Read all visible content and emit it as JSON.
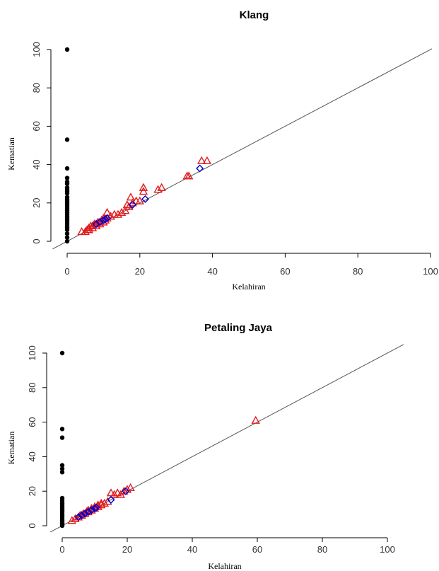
{
  "chart_data": [
    {
      "type": "scatter",
      "title": "Klang",
      "xlabel": "Kelahiran",
      "ylabel": "Kematian",
      "xlim": [
        -4,
        100
      ],
      "ylim": [
        -4,
        102
      ],
      "xticks": [
        "0",
        "20",
        "40",
        "60",
        "80",
        "100"
      ],
      "yticks": [
        "0",
        "20",
        "40",
        "60",
        "80",
        "100"
      ],
      "reference_line": {
        "slope": 1,
        "intercept": 0,
        "color": "#555555"
      },
      "grid": false,
      "series": [
        {
          "color": "#000000",
          "marker": "dot",
          "x": [
            0,
            0,
            0,
            0,
            0,
            0,
            0,
            0,
            0,
            0,
            0,
            0,
            0,
            0,
            0,
            0,
            0,
            0,
            0,
            0,
            0,
            0,
            0,
            0,
            0,
            0,
            0,
            0,
            0,
            0,
            0
          ],
          "y": [
            100,
            53,
            38,
            33,
            31,
            30,
            28,
            27,
            26,
            25,
            23,
            22,
            21,
            20,
            19,
            18,
            17,
            16,
            15,
            14,
            13,
            12,
            11,
            10,
            9,
            8,
            7,
            6,
            4,
            2,
            0
          ]
        },
        {
          "color": "#e41a1c",
          "marker": "triangle",
          "x": [
            4,
            5,
            5.5,
            6,
            6,
            6.5,
            7,
            7,
            7.5,
            8,
            8,
            8.5,
            9,
            9,
            9.5,
            10,
            10,
            10.5,
            11,
            11,
            12,
            13,
            14,
            15,
            16,
            16.5,
            17,
            17.5,
            18,
            19,
            20,
            21,
            21,
            25,
            26,
            33,
            33.5,
            37,
            38.5
          ],
          "y": [
            5,
            5,
            6,
            6,
            7,
            8,
            7,
            8,
            9,
            8,
            9,
            10,
            9,
            10,
            11,
            10,
            12,
            11,
            12,
            15,
            13,
            14,
            14,
            15,
            16,
            19,
            18,
            23,
            20,
            21,
            21,
            26,
            28,
            27,
            28,
            34,
            34,
            42,
            42
          ]
        },
        {
          "color": "#0000cc",
          "marker": "diamond",
          "x": [
            8,
            9,
            10,
            10.5,
            11,
            18,
            21.5,
            36.5
          ],
          "y": [
            9,
            10,
            11,
            11.5,
            12,
            19,
            22,
            38
          ]
        }
      ]
    },
    {
      "type": "scatter",
      "title": "Petaling Jaya",
      "xlabel": "Kelahiran",
      "ylabel": "Kematian",
      "xlim": [
        -4,
        104
      ],
      "ylim": [
        -3,
        103
      ],
      "xticks": [
        "0",
        "20",
        "40",
        "60",
        "80",
        "100"
      ],
      "yticks": [
        "0",
        "20",
        "40",
        "60",
        "80",
        "100"
      ],
      "reference_line": {
        "slope": 1,
        "intercept": 0,
        "color": "#555555"
      },
      "grid": false,
      "series": [
        {
          "color": "#000000",
          "marker": "dot",
          "x": [
            0,
            0,
            0,
            0,
            0,
            0,
            0,
            0,
            0,
            0,
            0,
            0,
            0,
            0,
            0,
            0,
            0,
            0,
            0,
            0,
            0,
            0,
            0,
            0
          ],
          "y": [
            100,
            56,
            51,
            35,
            33,
            31,
            16,
            15,
            14,
            13,
            12,
            11,
            10,
            9,
            8,
            7,
            6,
            5,
            4,
            3,
            2,
            1.5,
            1,
            0
          ]
        },
        {
          "color": "#e41a1c",
          "marker": "triangle",
          "x": [
            3,
            4,
            5,
            5.5,
            6,
            6.5,
            7,
            7.5,
            8,
            8,
            9,
            9,
            10,
            10,
            11,
            11,
            12,
            12,
            13,
            14,
            15,
            16,
            17,
            18,
            19,
            20,
            21,
            59.5
          ],
          "y": [
            3,
            4,
            5,
            6,
            6,
            7,
            7,
            8,
            8,
            9,
            9,
            10,
            10,
            11,
            11,
            12,
            12,
            13,
            13,
            14,
            19,
            18,
            19,
            18,
            20,
            21,
            22,
            61
          ]
        },
        {
          "color": "#0000cc",
          "marker": "diamond",
          "x": [
            5,
            6,
            7,
            8,
            9,
            10,
            10.5,
            15,
            19.5
          ],
          "y": [
            5,
            6,
            7,
            8,
            9,
            10,
            10.5,
            15,
            20
          ]
        }
      ]
    }
  ]
}
